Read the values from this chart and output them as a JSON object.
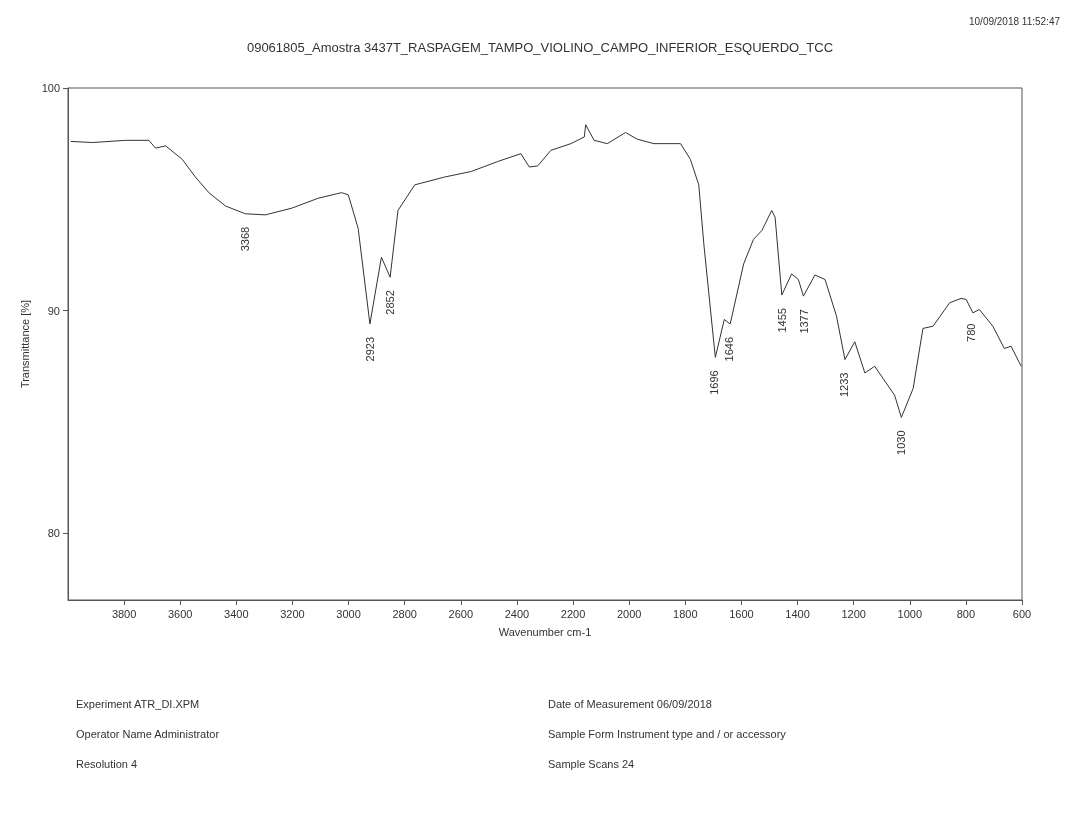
{
  "chart_data": {
    "type": "line",
    "title": "09061805_Amostra 3437T_RASPAGEM_TAMPO_VIOLINO_CAMPO_INFERIOR_ESQUERDO_TCC",
    "xlabel": "Wavenumber cm-1",
    "ylabel": "Transmittance [%]",
    "xlim": [
      4000,
      600
    ],
    "xticks": [
      3800,
      3600,
      3400,
      3200,
      3000,
      2800,
      2600,
      2400,
      2200,
      2000,
      1800,
      1600,
      1400,
      1200,
      1000,
      800,
      600
    ],
    "ylim": [
      77,
      100
    ],
    "yticks": [
      80,
      90,
      100
    ],
    "grid": false,
    "marker": "none",
    "line_style": "solid",
    "series": [
      {
        "color": "#333333",
        "x": [
          3990,
          3913,
          3794,
          3712,
          3688,
          3652,
          3593,
          3546,
          3498,
          3439,
          3368,
          3297,
          3203,
          3108,
          3025,
          3001,
          2966,
          2924,
          2883,
          2852,
          2824,
          2764,
          2658,
          2563,
          2468,
          2386,
          2356,
          2326,
          2279,
          2208,
          2160,
          2155,
          2125,
          2078,
          2013,
          1971,
          1912,
          1829,
          1817,
          1782,
          1752,
          1734,
          1693,
          1661,
          1640,
          1592,
          1557,
          1527,
          1492,
          1480,
          1456,
          1421,
          1397,
          1379,
          1338,
          1302,
          1261,
          1231,
          1196,
          1160,
          1125,
          1095,
          1054,
          1030,
          988,
          953,
          917,
          858,
          817,
          799,
          775,
          752,
          704,
          663,
          639,
          603
        ],
        "values": [
          97.6,
          97.55,
          97.65,
          97.65,
          97.3,
          97.4,
          96.8,
          96.0,
          95.3,
          94.7,
          94.35,
          94.3,
          94.6,
          95.05,
          95.3,
          95.2,
          93.7,
          89.4,
          92.4,
          91.5,
          94.5,
          95.65,
          96.0,
          96.25,
          96.7,
          97.05,
          96.45,
          96.5,
          97.2,
          97.5,
          97.8,
          98.35,
          97.65,
          97.5,
          98.0,
          97.7,
          97.5,
          97.5,
          97.5,
          96.8,
          95.65,
          93.0,
          87.9,
          89.6,
          89.4,
          92.1,
          93.2,
          93.6,
          94.5,
          94.2,
          90.7,
          91.65,
          91.4,
          90.65,
          91.6,
          91.4,
          89.75,
          87.8,
          88.6,
          87.2,
          87.5,
          86.95,
          86.2,
          85.2,
          86.5,
          89.2,
          89.3,
          90.35,
          90.55,
          90.5,
          89.9,
          90.05,
          89.3,
          88.3,
          88.4,
          87.5
        ]
      }
    ],
    "annotations": [
      {
        "text": "3368",
        "x": 3368,
        "y": 94.35
      },
      {
        "text": "2923",
        "x": 2923,
        "y": 89.4
      },
      {
        "text": "2852",
        "x": 2852,
        "y": 91.5
      },
      {
        "text": "1696",
        "x": 1696,
        "y": 87.9
      },
      {
        "text": "1646",
        "x": 1646,
        "y": 89.4
      },
      {
        "text": "1455",
        "x": 1455,
        "y": 90.7
      },
      {
        "text": "1377",
        "x": 1377,
        "y": 90.65
      },
      {
        "text": "1233",
        "x": 1233,
        "y": 87.8
      },
      {
        "text": "1030",
        "x": 1030,
        "y": 85.2
      },
      {
        "text": "780",
        "x": 780,
        "y": 90.0
      },
      "10/09/2018 11:52:47",
      "Experiment ATR_DI.XPM",
      "Operator Name Administrator",
      "Resolution 4",
      "Date of Measurement 06/09/2018",
      "Sample Form Instrument type and / or accessory",
      "Sample Scans 24"
    ]
  }
}
